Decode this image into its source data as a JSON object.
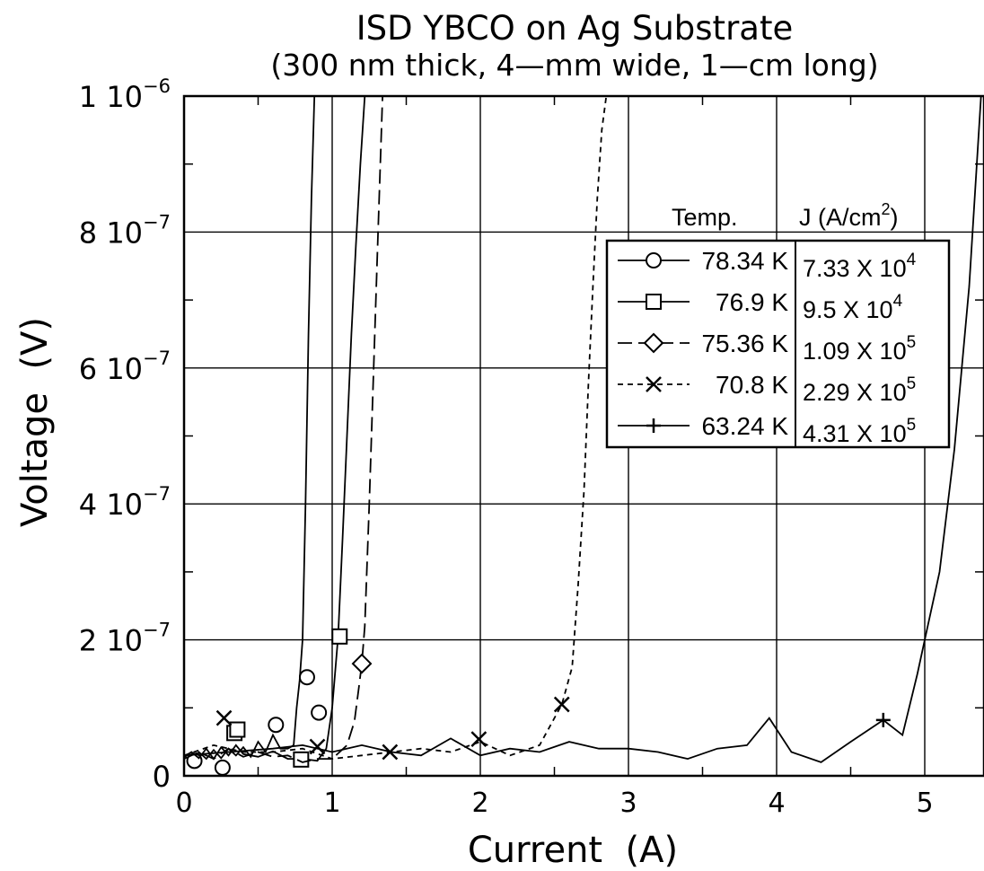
{
  "chart_data": {
    "type": "line",
    "title": "ISD YBCO on Ag Substrate",
    "subtitle": "(300 nm thick, 4—mm wide, 1—cm long)",
    "xlabel": "Current  (A)",
    "ylabel": "Voltage  (V)",
    "xlim": [
      0,
      5.4
    ],
    "ylim": [
      0,
      1e-06
    ],
    "grid": true,
    "x_ticks": [
      {
        "value": 0,
        "label": "0"
      },
      {
        "value": 1,
        "label": "1"
      },
      {
        "value": 2,
        "label": "2"
      },
      {
        "value": 3,
        "label": "3"
      },
      {
        "value": 4,
        "label": "4"
      },
      {
        "value": 5,
        "label": "5"
      }
    ],
    "y_ticks": [
      {
        "value": 0,
        "mant": "0",
        "exp": ""
      },
      {
        "value": 2e-07,
        "mant": "2 10",
        "exp": "−7"
      },
      {
        "value": 4e-07,
        "mant": "4 10",
        "exp": "−7"
      },
      {
        "value": 6e-07,
        "mant": "6 10",
        "exp": "−7"
      },
      {
        "value": 8e-07,
        "mant": "8 10",
        "exp": "−7"
      },
      {
        "value": 1e-06,
        "mant": "1 10",
        "exp": "−6"
      }
    ],
    "legend": {
      "placement": "top-right",
      "header_temp": "Temp.",
      "header_j": "J (A/cm",
      "header_j_sup": "2",
      "header_j_close": ")",
      "entries": [
        {
          "temp": "78.34 K",
          "j_mant": "7.33 X 10",
          "j_exp": "4",
          "marker": "circle",
          "dash": "solid"
        },
        {
          "temp": "76.9 K",
          "j_mant": "9.5 X 10",
          "j_exp": "4",
          "marker": "square",
          "dash": "solid"
        },
        {
          "temp": "75.36 K",
          "j_mant": "1.09 X 10",
          "j_exp": "5",
          "marker": "diamond",
          "dash": "dashed"
        },
        {
          "temp": "70.8 K",
          "j_mant": "2.29 X 10",
          "j_exp": "5",
          "marker": "x",
          "dash": "dotted"
        },
        {
          "temp": "63.24 K",
          "j_mant": "4.31 X 10",
          "j_exp": "5",
          "marker": "plus",
          "dash": "solid"
        }
      ]
    },
    "series": [
      {
        "marker": "circle",
        "dash": "solid",
        "x": [
          0.0,
          0.05,
          0.1,
          0.15,
          0.2,
          0.25,
          0.3,
          0.35,
          0.4,
          0.45,
          0.5,
          0.55,
          0.6,
          0.65,
          0.7,
          0.74,
          0.76,
          0.78,
          0.8,
          0.82,
          0.84,
          0.86,
          0.88
        ],
        "y": [
          3e-08,
          2.2e-08,
          3.5e-08,
          2.5e-08,
          3.8e-08,
          2.6e-08,
          4e-08,
          3e-08,
          4.2e-08,
          2.8e-08,
          5e-08,
          3.5e-08,
          6e-08,
          4e-08,
          4e-08,
          4.5e-08,
          1e-07,
          1.4e-07,
          2e-07,
          4e-07,
          6.5e-07,
          8.5e-07,
          1e-06
        ],
        "markers_x": [
          0.07,
          0.26,
          0.62,
          0.83,
          0.91
        ],
        "markers_y": [
          2.2e-08,
          1.2e-08,
          7.5e-08,
          1.45e-07,
          9.3e-08
        ]
      },
      {
        "marker": "square",
        "dash": "solid",
        "x": [
          0.0,
          0.05,
          0.1,
          0.15,
          0.2,
          0.25,
          0.3,
          0.35,
          0.4,
          0.5,
          0.6,
          0.7,
          0.8,
          0.9,
          0.96,
          1.0,
          1.04,
          1.07,
          1.1,
          1.13,
          1.16,
          1.19,
          1.22
        ],
        "y": [
          2.8e-08,
          3.5e-08,
          2.6e-08,
          4e-08,
          2.5e-08,
          4.2e-08,
          3e-08,
          4.5e-08,
          3.2e-08,
          2.8e-08,
          3.6e-08,
          2.5e-08,
          2.5e-08,
          2.2e-08,
          4e-08,
          1e-07,
          2.05e-07,
          3.5e-07,
          5e-07,
          6.5e-07,
          7.8e-07,
          9e-07,
          1e-06
        ],
        "markers_x": [
          0.34,
          0.36,
          0.79,
          1.05
        ],
        "markers_y": [
          6.3e-08,
          6.8e-08,
          2.4e-08,
          2.05e-07
        ]
      },
      {
        "marker": "diamond",
        "dash": "dashed",
        "x": [
          0.0,
          0.1,
          0.2,
          0.3,
          0.4,
          0.5,
          0.6,
          0.7,
          0.8,
          0.9,
          1.0,
          1.1,
          1.15,
          1.18,
          1.2,
          1.22,
          1.25,
          1.28,
          1.31,
          1.34
        ],
        "y": [
          2.5e-08,
          3.5e-08,
          2.5e-08,
          4e-08,
          2.8e-08,
          3.5e-08,
          2.8e-08,
          3e-08,
          2e-08,
          2.5e-08,
          2.5e-08,
          4.5e-08,
          8e-08,
          1.3e-07,
          1.65e-07,
          2.2e-07,
          4e-07,
          6e-07,
          8e-07,
          1e-06
        ],
        "markers_x": [
          1.2
        ],
        "markers_y": [
          1.65e-07
        ]
      },
      {
        "marker": "x",
        "dash": "dotted",
        "x": [
          0.0,
          0.2,
          0.4,
          0.6,
          0.8,
          1.0,
          1.2,
          1.4,
          1.6,
          1.8,
          2.0,
          2.2,
          2.4,
          2.55,
          2.62,
          2.66,
          2.7,
          2.73,
          2.76,
          2.79,
          2.82,
          2.85
        ],
        "y": [
          3e-08,
          4.5e-08,
          3.5e-08,
          3.5e-08,
          4e-08,
          2.5e-08,
          3e-08,
          3.5e-08,
          4e-08,
          3.5e-08,
          5e-08,
          3e-08,
          4.5e-08,
          1.05e-07,
          1.6e-07,
          2.8e-07,
          4.2e-07,
          5.8e-07,
          7.2e-07,
          8.5e-07,
          9.5e-07,
          1e-06
        ],
        "markers_x": [
          0.27,
          0.9,
          1.39,
          1.99,
          2.55
        ],
        "markers_y": [
          8.5e-08,
          4.3e-08,
          3.5e-08,
          5.4e-08,
          1.05e-07
        ]
      },
      {
        "marker": "plus",
        "dash": "solid",
        "x": [
          0.0,
          0.3,
          0.6,
          0.8,
          1.0,
          1.2,
          1.4,
          1.6,
          1.8,
          2.0,
          2.2,
          2.4,
          2.6,
          2.8,
          3.0,
          3.2,
          3.4,
          3.6,
          3.8,
          3.95,
          4.1,
          4.3,
          4.5,
          4.72,
          4.85,
          4.95,
          5.0,
          5.1,
          5.2,
          5.3,
          5.38
        ],
        "y": [
          3e-08,
          3.5e-08,
          4e-08,
          4.5e-08,
          3.5e-08,
          4.5e-08,
          3.5e-08,
          3e-08,
          5.5e-08,
          3e-08,
          4e-08,
          3.5e-08,
          5e-08,
          4e-08,
          4e-08,
          3.5e-08,
          2.5e-08,
          4e-08,
          4.5e-08,
          8.5e-08,
          3.5e-08,
          2e-08,
          5e-08,
          8.2e-08,
          6e-08,
          1.5e-07,
          2e-07,
          3e-07,
          4.8e-07,
          7.2e-07,
          1e-06
        ],
        "markers_x": [
          4.72
        ],
        "markers_y": [
          8.2e-08
        ]
      }
    ]
  }
}
